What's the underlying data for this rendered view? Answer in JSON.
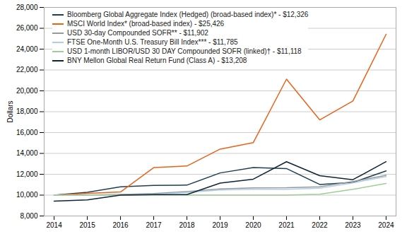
{
  "chart_data": {
    "type": "line",
    "ylabel": "Dollars",
    "x": [
      2014,
      2015,
      2016,
      2017,
      2018,
      2019,
      2020,
      2021,
      2022,
      2023,
      2024
    ],
    "series": [
      {
        "name": "Bloomberg Global Aggregate Index (Hedged) (broad-based index)* - $12,326",
        "color": "#1f3f52",
        "values": [
          10000,
          10272,
          10803,
          10936,
          10958,
          12127,
          12651,
          12546,
          11024,
          11214,
          12326
        ]
      },
      {
        "name": "MSCI World Index* (broad-based index) - $25,426",
        "color": "#e8631a",
        "values": [
          10000,
          10177,
          10297,
          12642,
          12789,
          14412,
          15040,
          21119,
          17216,
          19020,
          25426
        ]
      },
      {
        "name": "USD 30-day Compounded SOFR** - $11,902",
        "color": "#999999",
        "values": [
          10000,
          10018,
          10061,
          10160,
          10344,
          10595,
          10694,
          10706,
          10798,
          11302,
          11902
        ]
      },
      {
        "name": "FTSE One-Month U.S. Treasury Bill Index*** - $11,785",
        "color": "#aecfe8",
        "values": [
          10000,
          10001,
          10019,
          10086,
          10249,
          10486,
          10560,
          10564,
          10653,
          11170,
          11785
        ]
      },
      {
        "name": "USD 1-month LIBOR/USD 30 DAY Compounded SOFR (linked)† - $11,118",
        "color": "#a0cc96",
        "values": [
          10000,
          10000,
          10000,
          10000,
          10000,
          10000,
          10000,
          10000,
          10086,
          10557,
          11118
        ]
      },
      {
        "name": "BNY Mellon Global Real Return Fund (Class A) - $13,208",
        "color": "#0d2535",
        "values": [
          9425,
          9540,
          10005,
          10052,
          10047,
          11149,
          11530,
          13206,
          11864,
          11478,
          13208
        ]
      }
    ],
    "xlim": [
      2013.7,
      2024.3
    ],
    "xticks": [
      2014,
      2015,
      2016,
      2017,
      2018,
      2019,
      2020,
      2021,
      2022,
      2023,
      2024
    ],
    "ylim": [
      8000,
      28000
    ],
    "yticks": [
      {
        "value": 8000,
        "label": "8,000"
      },
      {
        "value": 10000,
        "label": "10,000"
      },
      {
        "value": 12000,
        "label": "12,000"
      },
      {
        "value": 14000,
        "label": "14,000"
      },
      {
        "value": 16000,
        "label": "16,000"
      },
      {
        "value": 18000,
        "label": "18,000"
      },
      {
        "value": 20000,
        "label": "20,000"
      },
      {
        "value": 22000,
        "label": "22,000"
      },
      {
        "value": 24000,
        "label": "24,000"
      },
      {
        "value": 26000,
        "label": "26,000"
      },
      {
        "value": 28000,
        "label": "28,000"
      }
    ],
    "grid": true,
    "legend": "upper left"
  }
}
